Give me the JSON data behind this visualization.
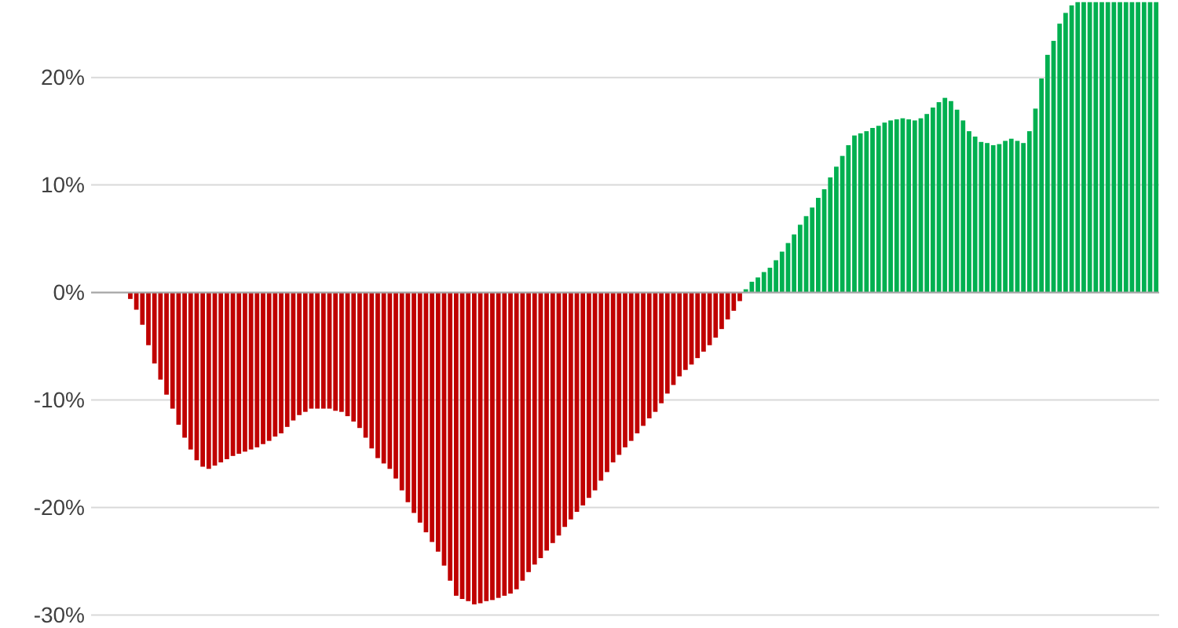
{
  "chart_data": {
    "type": "bar",
    "categories": [
      null,
      null,
      null,
      null,
      null,
      null,
      null,
      null,
      null,
      null,
      null,
      null,
      null,
      null,
      null,
      null,
      null,
      null,
      null,
      null,
      null,
      null,
      null,
      null,
      null,
      null,
      null,
      null,
      null,
      null,
      null,
      null,
      null,
      null,
      null,
      null,
      null,
      null,
      null,
      null,
      null,
      null,
      null,
      null,
      null,
      null,
      null,
      null,
      null,
      null,
      null,
      null,
      null,
      null,
      null,
      null,
      null,
      null,
      null,
      null,
      null,
      null,
      null,
      null,
      null,
      null,
      null,
      null,
      null,
      null,
      null,
      null,
      null,
      null,
      null,
      null,
      null,
      null,
      null,
      null,
      null,
      null,
      null,
      null,
      null,
      null,
      null,
      null,
      null,
      null,
      null,
      null,
      null,
      null,
      null,
      null,
      null,
      null,
      null,
      null,
      null,
      null,
      null,
      null,
      null,
      null,
      null,
      null,
      null,
      null,
      null,
      null,
      null,
      null,
      null,
      null,
      null,
      null,
      null,
      null,
      null,
      null,
      null,
      null,
      null,
      null,
      null,
      null,
      null,
      null,
      null,
      null,
      null,
      null,
      null,
      null,
      null,
      null,
      null,
      null,
      null,
      null,
      null,
      null,
      null,
      null,
      null,
      null,
      null,
      null,
      null,
      null,
      null,
      null,
      null,
      null,
      null,
      null,
      null,
      null,
      null,
      null,
      null,
      null,
      null,
      null,
      null,
      null,
      null,
      null,
      null,
      null,
      null,
      null,
      null,
      null,
      null
    ],
    "values": [
      null,
      null,
      null,
      null,
      null,
      null,
      -0.6,
      -1.6,
      -3.0,
      -4.9,
      -6.6,
      -8.1,
      -9.5,
      -10.8,
      -12.3,
      -13.5,
      -14.6,
      -15.6,
      -16.2,
      -16.4,
      -16.1,
      -15.8,
      -15.5,
      -15.2,
      -15.0,
      -14.8,
      -14.6,
      -14.4,
      -14.1,
      -13.8,
      -13.4,
      -13.1,
      -12.5,
      -11.9,
      -11.4,
      -11.1,
      -10.8,
      -10.8,
      -10.8,
      -10.8,
      -11.0,
      -11.1,
      -11.5,
      -12.0,
      -12.6,
      -13.5,
      -14.5,
      -15.4,
      -15.9,
      -16.4,
      -17.3,
      -18.4,
      -19.5,
      -20.5,
      -21.4,
      -22.3,
      -23.2,
      -24.1,
      -25.4,
      -26.8,
      -28.2,
      -28.5,
      -28.7,
      -29.0,
      -28.9,
      -28.7,
      -28.6,
      -28.4,
      -28.2,
      -28.0,
      -27.6,
      -26.8,
      -26.0,
      -25.3,
      -24.7,
      -24.0,
      -23.3,
      -22.6,
      -21.8,
      -21.1,
      -20.4,
      -19.8,
      -19.1,
      -18.4,
      -17.5,
      -16.7,
      -15.8,
      -15.1,
      -14.4,
      -13.8,
      -13.1,
      -12.4,
      -11.7,
      -11.1,
      -10.3,
      -9.4,
      -8.6,
      -7.8,
      -7.2,
      -6.7,
      -6.1,
      -5.5,
      -4.9,
      -4.2,
      -3.4,
      -2.5,
      -1.7,
      -0.8,
      0.3,
      1.0,
      1.4,
      1.9,
      2.3,
      3.0,
      3.8,
      4.6,
      5.4,
      6.3,
      7.1,
      7.9,
      8.8,
      9.6,
      10.7,
      11.7,
      12.7,
      13.7,
      14.6,
      14.8,
      15.0,
      15.3,
      15.5,
      15.8,
      16.0,
      16.1,
      16.2,
      16.1,
      16.0,
      16.2,
      16.6,
      17.2,
      17.7,
      18.1,
      17.8,
      17.0,
      16.0,
      15.0,
      14.5,
      14.0,
      13.9,
      13.7,
      13.8,
      14.1,
      14.3,
      14.1,
      13.9,
      15.0,
      17.1,
      19.9,
      22.1,
      23.4,
      25.0,
      26.0,
      26.7,
      27,
      27,
      27,
      27,
      27,
      27,
      27,
      27,
      27,
      27,
      27,
      27,
      27,
      27
    ],
    "colors": [
      null,
      null,
      null,
      null,
      null,
      null,
      "#c00000",
      "#c00000",
      "#c00000",
      "#c00000",
      "#c00000",
      "#c00000",
      "#c00000",
      "#c00000",
      "#c00000",
      "#c00000",
      "#c00000",
      "#c00000",
      "#c00000",
      "#c00000",
      "#c00000",
      "#c00000",
      "#c00000",
      "#c00000",
      "#c00000",
      "#c00000",
      "#c00000",
      "#c00000",
      "#c00000",
      "#c00000",
      "#c00000",
      "#c00000",
      "#c00000",
      "#c00000",
      "#c00000",
      "#c00000",
      "#c00000",
      "#c00000",
      "#c00000",
      "#c00000",
      "#c00000",
      "#c00000",
      "#c00000",
      "#c00000",
      "#c00000",
      "#c00000",
      "#c00000",
      "#c00000",
      "#c00000",
      "#c00000",
      "#c00000",
      "#c00000",
      "#c00000",
      "#c00000",
      "#c00000",
      "#c00000",
      "#c00000",
      "#c00000",
      "#c00000",
      "#c00000",
      "#c00000",
      "#c00000",
      "#c00000",
      "#c00000",
      "#c00000",
      "#c00000",
      "#c00000",
      "#c00000",
      "#c00000",
      "#c00000",
      "#c00000",
      "#c00000",
      "#c00000",
      "#c00000",
      "#c00000",
      "#c00000",
      "#c00000",
      "#c00000",
      "#c00000",
      "#c00000",
      "#c00000",
      "#c00000",
      "#c00000",
      "#c00000",
      "#c00000",
      "#c00000",
      "#c00000",
      "#c00000",
      "#c00000",
      "#c00000",
      "#c00000",
      "#c00000",
      "#c00000",
      "#c00000",
      "#c00000",
      "#c00000",
      "#c00000",
      "#c00000",
      "#c00000",
      "#c00000",
      "#c00000",
      "#c00000",
      "#c00000",
      "#c00000",
      "#c00000",
      "#c00000",
      "#c00000",
      "#c00000",
      "#00b050",
      "#00b050",
      "#00b050",
      "#00b050",
      "#00b050",
      "#00b050",
      "#00b050",
      "#00b050",
      "#00b050",
      "#00b050",
      "#00b050",
      "#00b050",
      "#00b050",
      "#00b050",
      "#00b050",
      "#00b050",
      "#00b050",
      "#00b050",
      "#00b050",
      "#00b050",
      "#00b050",
      "#00b050",
      "#00b050",
      "#00b050",
      "#00b050",
      "#00b050",
      "#00b050",
      "#00b050",
      "#00b050",
      "#00b050",
      "#00b050",
      "#00b050",
      "#00b050",
      "#00b050",
      "#00b050",
      "#00b050",
      "#00b050",
      "#00b050",
      "#00b050",
      "#00b050",
      "#00b050",
      "#00b050",
      "#00b050",
      "#00b050",
      "#00b050",
      "#00b050",
      "#00b050",
      "#00b050",
      "#00b050",
      "#00b050",
      "#00b050",
      "#00b050",
      "#00b050",
      "#00b050",
      "#00b050",
      "#00b050",
      "#00b050",
      "#00b050",
      "#00b050",
      "#00b050",
      "#00b050",
      "#00b050",
      "#00b050",
      "#00b050",
      "#00b050",
      "#00b050",
      "#00b050",
      "#00b050",
      "#00b050"
    ],
    "ylim": [
      -31.2,
      27.2
    ],
    "yticks": [
      {
        "value": -30,
        "label": "-30%"
      },
      {
        "value": -20,
        "label": "-20%"
      },
      {
        "value": -10,
        "label": "-10%"
      },
      {
        "value": 0,
        "label": "0%"
      },
      {
        "value": 10,
        "label": "10%"
      },
      {
        "value": 20,
        "label": "20%"
      }
    ],
    "grid": "y"
  }
}
